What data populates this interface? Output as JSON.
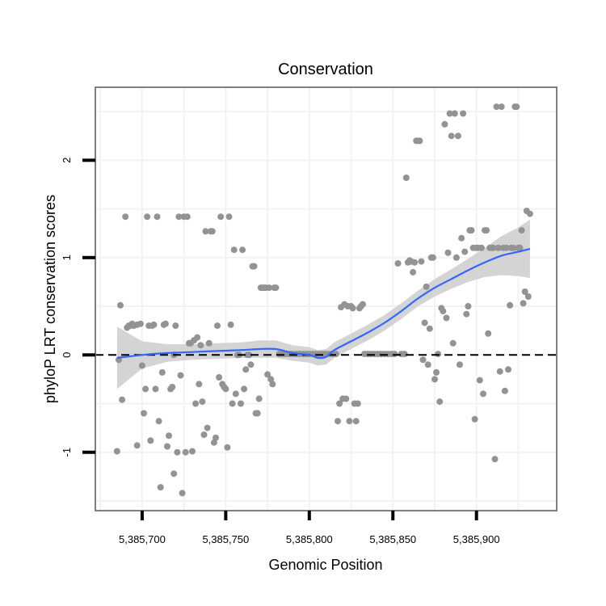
{
  "chart_data": {
    "type": "scatter",
    "title": "Conservation",
    "xlabel": "Genomic Position",
    "ylabel": "phyloP LRT conservation scores",
    "xlim": [
      5385672,
      5385948
    ],
    "ylim": [
      -1.6,
      2.75
    ],
    "x_ticks": [
      {
        "value": 5385700,
        "label": "5,385,700"
      },
      {
        "value": 5385750,
        "label": "5,385,750"
      },
      {
        "value": 5385800,
        "label": "5,385,800"
      },
      {
        "value": 5385850,
        "label": "5,385,850"
      },
      {
        "value": 5385900,
        "label": "5,385,900"
      }
    ],
    "y_ticks": [
      {
        "value": -1,
        "label": "-1"
      },
      {
        "value": 0,
        "label": "0"
      },
      {
        "value": 1,
        "label": "1"
      },
      {
        "value": 2,
        "label": "2"
      }
    ],
    "reference_line": {
      "y": 0,
      "style": "dashed",
      "color": "#000000"
    },
    "points_color": "#939393",
    "smooth_color": "#3366ff",
    "ribbon_color": "#d4d4d4",
    "points": [
      [
        5385685,
        -0.99
      ],
      [
        5385686,
        -0.05
      ],
      [
        5385687,
        0.51
      ],
      [
        5385688,
        -0.46
      ],
      [
        5385690,
        1.42
      ],
      [
        5385691,
        0.28
      ],
      [
        5385692,
        0.3
      ],
      [
        5385693,
        0.3
      ],
      [
        5385694,
        0.32
      ],
      [
        5385695,
        0.3
      ],
      [
        5385697,
        0.31
      ],
      [
        5385697,
        -0.93
      ],
      [
        5385699,
        0.32
      ],
      [
        5385700,
        -0.11
      ],
      [
        5385701,
        -0.6
      ],
      [
        5385702,
        -0.35
      ],
      [
        5385703,
        1.42
      ],
      [
        5385704,
        0.3
      ],
      [
        5385705,
        -0.88
      ],
      [
        5385706,
        0.3
      ],
      [
        5385707,
        0.31
      ],
      [
        5385708,
        -0.35
      ],
      [
        5385709,
        1.42
      ],
      [
        5385710,
        -0.68
      ],
      [
        5385711,
        -1.36
      ],
      [
        5385712,
        -0.18
      ],
      [
        5385713,
        0.31
      ],
      [
        5385714,
        0.32
      ],
      [
        5385715,
        -0.94
      ],
      [
        5385716,
        -0.83
      ],
      [
        5385717,
        -0.35
      ],
      [
        5385718,
        -0.33
      ],
      [
        5385719,
        -1.22
      ],
      [
        5385719,
        0.0
      ],
      [
        5385720,
        0.3
      ],
      [
        5385721,
        -1.0
      ],
      [
        5385722,
        1.42
      ],
      [
        5385723,
        -0.21
      ],
      [
        5385724,
        -1.42
      ],
      [
        5385725,
        1.42
      ],
      [
        5385726,
        -1.0
      ],
      [
        5385727,
        1.42
      ],
      [
        5385728,
        0.12
      ],
      [
        5385729,
        0.12
      ],
      [
        5385730,
        -0.99
      ],
      [
        5385731,
        0.15
      ],
      [
        5385732,
        -0.5
      ],
      [
        5385733,
        0.18
      ],
      [
        5385734,
        -0.3
      ],
      [
        5385735,
        0.1
      ],
      [
        5385736,
        -0.48
      ],
      [
        5385737,
        -0.82
      ],
      [
        5385738,
        1.27
      ],
      [
        5385739,
        -0.75
      ],
      [
        5385740,
        0.12
      ],
      [
        5385741,
        1.27
      ],
      [
        5385742,
        1.27
      ],
      [
        5385743,
        -0.9
      ],
      [
        5385744,
        -0.85
      ],
      [
        5385745,
        0.3
      ],
      [
        5385746,
        -0.23
      ],
      [
        5385747,
        1.42
      ],
      [
        5385748,
        -0.3
      ],
      [
        5385749,
        -0.33
      ],
      [
        5385750,
        -0.35
      ],
      [
        5385751,
        -0.95
      ],
      [
        5385752,
        1.42
      ],
      [
        5385753,
        0.31
      ],
      [
        5385754,
        -0.5
      ],
      [
        5385755,
        1.08
      ],
      [
        5385756,
        -0.4
      ],
      [
        5385757,
        0.0
      ],
      [
        5385758,
        0.0
      ],
      [
        5385759,
        -0.5
      ],
      [
        5385760,
        1.08
      ],
      [
        5385761,
        -0.35
      ],
      [
        5385762,
        -0.15
      ],
      [
        5385763,
        0.0
      ],
      [
        5385764,
        0.0
      ],
      [
        5385765,
        -0.1
      ],
      [
        5385766,
        0.91
      ],
      [
        5385767,
        0.91
      ],
      [
        5385768,
        -0.6
      ],
      [
        5385769,
        -0.6
      ],
      [
        5385770,
        -0.45
      ],
      [
        5385771,
        0.69
      ],
      [
        5385772,
        0.69
      ],
      [
        5385773,
        0.69
      ],
      [
        5385774,
        0.69
      ],
      [
        5385775,
        -0.2
      ],
      [
        5385776,
        0.69
      ],
      [
        5385777,
        -0.25
      ],
      [
        5385778,
        -0.3
      ],
      [
        5385779,
        0.69
      ],
      [
        5385780,
        0.69
      ],
      [
        5385782,
        0.01
      ],
      [
        5385784,
        0.01
      ],
      [
        5385786,
        0.01
      ],
      [
        5385788,
        0.01
      ],
      [
        5385790,
        0.01
      ],
      [
        5385792,
        0.01
      ],
      [
        5385794,
        0.01
      ],
      [
        5385796,
        0.01
      ],
      [
        5385798,
        0.01
      ],
      [
        5385800,
        0.01
      ],
      [
        5385802,
        0.01
      ],
      [
        5385804,
        0.01
      ],
      [
        5385806,
        0.01
      ],
      [
        5385808,
        0.01
      ],
      [
        5385810,
        0.01
      ],
      [
        5385812,
        0.01
      ],
      [
        5385814,
        0.01
      ],
      [
        5385816,
        0.01
      ],
      [
        5385817,
        -0.68
      ],
      [
        5385818,
        -0.5
      ],
      [
        5385819,
        0.49
      ],
      [
        5385820,
        -0.45
      ],
      [
        5385821,
        0.52
      ],
      [
        5385822,
        -0.45
      ],
      [
        5385823,
        0.5
      ],
      [
        5385824,
        -0.68
      ],
      [
        5385825,
        0.5
      ],
      [
        5385826,
        0.48
      ],
      [
        5385827,
        -0.5
      ],
      [
        5385828,
        -0.68
      ],
      [
        5385829,
        -0.5
      ],
      [
        5385830,
        0.48
      ],
      [
        5385831,
        0.5
      ],
      [
        5385832,
        0.52
      ],
      [
        5385833,
        0.01
      ],
      [
        5385835,
        0.01
      ],
      [
        5385837,
        0.01
      ],
      [
        5385839,
        0.01
      ],
      [
        5385841,
        0.01
      ],
      [
        5385843,
        0.01
      ],
      [
        5385845,
        0.01
      ],
      [
        5385847,
        0.01
      ],
      [
        5385849,
        0.01
      ],
      [
        5385851,
        0.01
      ],
      [
        5385853,
        0.94
      ],
      [
        5385855,
        0.01
      ],
      [
        5385857,
        0.01
      ],
      [
        5385858,
        1.82
      ],
      [
        5385859,
        0.95
      ],
      [
        5385860,
        0.97
      ],
      [
        5385861,
        0.96
      ],
      [
        5385862,
        0.85
      ],
      [
        5385863,
        0.95
      ],
      [
        5385864,
        2.2
      ],
      [
        5385865,
        2.2
      ],
      [
        5385866,
        2.2
      ],
      [
        5385867,
        0.96
      ],
      [
        5385868,
        -0.05
      ],
      [
        5385869,
        0.33
      ],
      [
        5385870,
        0.7
      ],
      [
        5385871,
        -0.1
      ],
      [
        5385872,
        0.27
      ],
      [
        5385873,
        1.0
      ],
      [
        5385874,
        1.0
      ],
      [
        5385875,
        -0.25
      ],
      [
        5385876,
        -0.18
      ],
      [
        5385877,
        0.01
      ],
      [
        5385878,
        -0.48
      ],
      [
        5385879,
        0.48
      ],
      [
        5385880,
        0.45
      ],
      [
        5385881,
        2.37
      ],
      [
        5385882,
        0.38
      ],
      [
        5385883,
        1.05
      ],
      [
        5385884,
        2.48
      ],
      [
        5385885,
        2.25
      ],
      [
        5385886,
        0.12
      ],
      [
        5385887,
        2.48
      ],
      [
        5385888,
        1.0
      ],
      [
        5385889,
        2.25
      ],
      [
        5385890,
        -0.1
      ],
      [
        5385891,
        1.2
      ],
      [
        5385892,
        2.48
      ],
      [
        5385893,
        1.06
      ],
      [
        5385894,
        0.42
      ],
      [
        5385895,
        0.5
      ],
      [
        5385896,
        1.28
      ],
      [
        5385897,
        1.28
      ],
      [
        5385898,
        1.1
      ],
      [
        5385899,
        -0.66
      ],
      [
        5385900,
        1.1
      ],
      [
        5385901,
        1.1
      ],
      [
        5385902,
        -0.26
      ],
      [
        5385903,
        1.1
      ],
      [
        5385904,
        -0.4
      ],
      [
        5385905,
        1.28
      ],
      [
        5385906,
        1.28
      ],
      [
        5385907,
        0.22
      ],
      [
        5385908,
        1.1
      ],
      [
        5385909,
        1.1
      ],
      [
        5385910,
        1.1
      ],
      [
        5385911,
        -1.07
      ],
      [
        5385912,
        2.55
      ],
      [
        5385913,
        1.1
      ],
      [
        5385914,
        -0.17
      ],
      [
        5385915,
        2.55
      ],
      [
        5385916,
        1.1
      ],
      [
        5385917,
        -0.37
      ],
      [
        5385918,
        1.1
      ],
      [
        5385919,
        -0.15
      ],
      [
        5385920,
        0.51
      ],
      [
        5385921,
        1.1
      ],
      [
        5385922,
        1.1
      ],
      [
        5385923,
        2.55
      ],
      [
        5385924,
        2.55
      ],
      [
        5385925,
        1.1
      ],
      [
        5385926,
        1.1
      ],
      [
        5385927,
        1.28
      ],
      [
        5385928,
        0.53
      ],
      [
        5385929,
        0.65
      ],
      [
        5385930,
        1.48
      ],
      [
        5385931,
        0.6
      ],
      [
        5385932,
        1.45
      ]
    ],
    "smooth": [
      [
        5385685,
        -0.03
      ],
      [
        5385700,
        0.0
      ],
      [
        5385715,
        0.02
      ],
      [
        5385730,
        0.03
      ],
      [
        5385745,
        0.04
      ],
      [
        5385760,
        0.05
      ],
      [
        5385770,
        0.06
      ],
      [
        5385780,
        0.06
      ],
      [
        5385790,
        0.02
      ],
      [
        5385800,
        0.0
      ],
      [
        5385805,
        -0.03
      ],
      [
        5385810,
        -0.02
      ],
      [
        5385815,
        0.05
      ],
      [
        5385825,
        0.14
      ],
      [
        5385835,
        0.23
      ],
      [
        5385845,
        0.33
      ],
      [
        5385855,
        0.45
      ],
      [
        5385865,
        0.58
      ],
      [
        5385875,
        0.69
      ],
      [
        5385885,
        0.78
      ],
      [
        5385895,
        0.87
      ],
      [
        5385905,
        0.95
      ],
      [
        5385915,
        1.02
      ],
      [
        5385925,
        1.06
      ],
      [
        5385932,
        1.09
      ]
    ],
    "ribbon_halfwidth": [
      0.32,
      0.14,
      0.09,
      0.08,
      0.08,
      0.08,
      0.09,
      0.09,
      0.08,
      0.08,
      0.08,
      0.08,
      0.08,
      0.08,
      0.08,
      0.08,
      0.08,
      0.08,
      0.09,
      0.1,
      0.12,
      0.15,
      0.2,
      0.25,
      0.3
    ]
  }
}
